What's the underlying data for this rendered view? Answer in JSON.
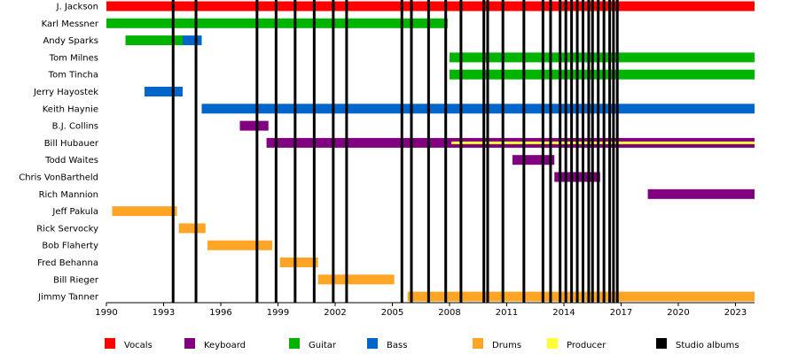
{
  "chart_data": {
    "type": "timeline",
    "x_range": [
      1990,
      2024
    ],
    "x_ticks": [
      1990,
      1993,
      1996,
      1999,
      2002,
      2005,
      2008,
      2011,
      2014,
      2017,
      2020,
      2023
    ],
    "colors": {
      "Vocals": "#ff0000",
      "Keyboard": "#800080",
      "Guitar": "#00b400",
      "Bass": "#0066cc",
      "Drums": "#ffa526",
      "Producer": "#ffff33",
      "Studio albums": "#000000"
    },
    "legend": [
      "Vocals",
      "Keyboard",
      "Guitar",
      "Bass",
      "Drums",
      "Producer",
      "Studio albums"
    ],
    "members": [
      {
        "name": "J. Jackson",
        "bars": [
          {
            "role": "Vocals",
            "start": 1990.0,
            "end": 2024.0
          }
        ]
      },
      {
        "name": "Karl Messner",
        "bars": [
          {
            "role": "Guitar",
            "start": 1990.0,
            "end": 2007.9
          }
        ]
      },
      {
        "name": "Andy Sparks",
        "bars": [
          {
            "role": "Guitar",
            "start": 1991.0,
            "end": 1994.0
          },
          {
            "role": "Bass",
            "start": 1994.0,
            "end": 1995.0
          }
        ]
      },
      {
        "name": "Tom Milnes",
        "bars": [
          {
            "role": "Guitar",
            "start": 2008.0,
            "end": 2024.0
          }
        ]
      },
      {
        "name": "Tom Tincha",
        "bars": [
          {
            "role": "Guitar",
            "start": 2008.0,
            "end": 2024.0
          }
        ]
      },
      {
        "name": "Jerry Hayostek",
        "bars": [
          {
            "role": "Bass",
            "start": 1992.0,
            "end": 1994.0
          }
        ]
      },
      {
        "name": "Keith Haynie",
        "bars": [
          {
            "role": "Bass",
            "start": 1995.0,
            "end": 2024.0
          }
        ]
      },
      {
        "name": "B.J. Collins",
        "bars": [
          {
            "role": "Keyboard",
            "start": 1997.0,
            "end": 1998.5
          }
        ]
      },
      {
        "name": "Bill Hubauer",
        "bars": [
          {
            "role": "Keyboard",
            "start": 1998.4,
            "end": 2024.0
          }
        ],
        "overlays": [
          {
            "role": "Producer",
            "start": 2008.1,
            "end": 2024.0
          }
        ]
      },
      {
        "name": "Todd Waites",
        "bars": [
          {
            "role": "Keyboard",
            "start": 2011.3,
            "end": 2013.5
          }
        ]
      },
      {
        "name": "Chris VonBartheld",
        "bars": [
          {
            "role": "Keyboard",
            "start": 2013.5,
            "end": 2015.9
          }
        ]
      },
      {
        "name": "Rich Mannion",
        "bars": [
          {
            "role": "Keyboard",
            "start": 2018.4,
            "end": 2024.0
          }
        ]
      },
      {
        "name": "Jeff Pakula",
        "bars": [
          {
            "role": "Drums",
            "start": 1990.3,
            "end": 1993.7
          }
        ]
      },
      {
        "name": "Rick Servocky",
        "bars": [
          {
            "role": "Drums",
            "start": 1993.8,
            "end": 1995.2
          }
        ]
      },
      {
        "name": "Bob Flaherty",
        "bars": [
          {
            "role": "Drums",
            "start": 1995.3,
            "end": 1998.7
          }
        ]
      },
      {
        "name": "Fred Behanna",
        "bars": [
          {
            "role": "Drums",
            "start": 1999.1,
            "end": 2001.1
          }
        ]
      },
      {
        "name": "Bill Rieger",
        "bars": [
          {
            "role": "Drums",
            "start": 2001.1,
            "end": 2005.1
          }
        ]
      },
      {
        "name": "Jimmy Tanner",
        "bars": [
          {
            "role": "Drums",
            "start": 2005.8,
            "end": 2024.0
          }
        ]
      }
    ],
    "studio_albums": [
      1993.5,
      1994.7,
      1997.9,
      1998.9,
      1999.9,
      2000.9,
      2001.9,
      2002.6,
      2005.5,
      2006.0,
      2006.9,
      2007.8,
      2008.6,
      2009.8,
      2010.0,
      2010.8,
      2011.9,
      2012.9,
      2013.3,
      2013.8,
      2014.1,
      2014.4,
      2014.7,
      2015.0,
      2015.3,
      2015.5,
      2015.8,
      2016.1,
      2016.4,
      2016.6,
      2016.8
    ]
  }
}
